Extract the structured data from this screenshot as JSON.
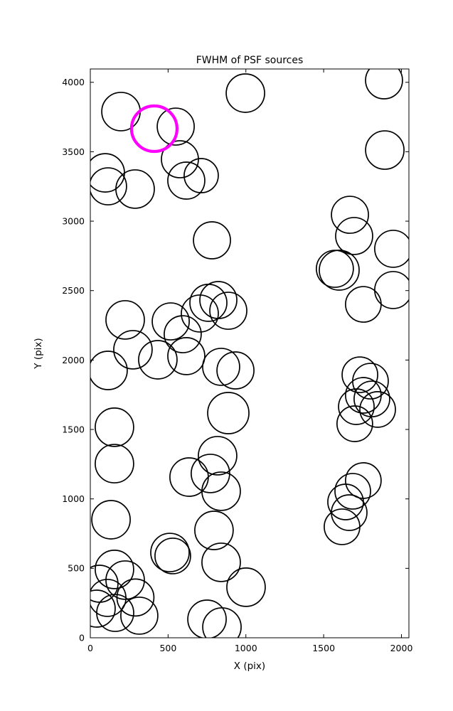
{
  "chart_data": {
    "type": "scatter",
    "title": "FWHM of PSF sources",
    "xlabel": "X (pix)",
    "ylabel": "Y (pix)",
    "xlim": [
      0,
      2048
    ],
    "ylim": [
      0,
      4096
    ],
    "xticks": [
      0,
      500,
      1000,
      1500,
      2000
    ],
    "yticks": [
      0,
      500,
      1000,
      1500,
      2000,
      2500,
      3000,
      3500,
      4000
    ],
    "grid": false,
    "legend": false,
    "marker_style": "open-circle",
    "radius_units": "screen_px",
    "circle_color": "#000000",
    "highlight_color": "#ff00ff",
    "highlight": {
      "x": 411,
      "y": 3666,
      "r": 32
    },
    "circles": [
      {
        "x": 197,
        "y": 3789,
        "r": 27
      },
      {
        "x": 549,
        "y": 3681,
        "r": 26
      },
      {
        "x": 997,
        "y": 3922,
        "r": 27
      },
      {
        "x": 1888,
        "y": 4014,
        "r": 26
      },
      {
        "x": 1893,
        "y": 3512,
        "r": 27
      },
      {
        "x": 96,
        "y": 3348,
        "r": 27
      },
      {
        "x": 288,
        "y": 3231,
        "r": 27
      },
      {
        "x": 114,
        "y": 3251,
        "r": 26
      },
      {
        "x": 576,
        "y": 3446,
        "r": 26
      },
      {
        "x": 617,
        "y": 3292,
        "r": 26
      },
      {
        "x": 713,
        "y": 3328,
        "r": 24
      },
      {
        "x": 782,
        "y": 2862,
        "r": 26
      },
      {
        "x": 1669,
        "y": 3046,
        "r": 26
      },
      {
        "x": 1696,
        "y": 2893,
        "r": 26
      },
      {
        "x": 1947,
        "y": 2801,
        "r": 26
      },
      {
        "x": 1572,
        "y": 2657,
        "r": 26
      },
      {
        "x": 1600,
        "y": 2647,
        "r": 28
      },
      {
        "x": 1755,
        "y": 2401,
        "r": 25
      },
      {
        "x": 1947,
        "y": 2504,
        "r": 26
      },
      {
        "x": 224,
        "y": 2289,
        "r": 27
      },
      {
        "x": 274,
        "y": 2074,
        "r": 27
      },
      {
        "x": 114,
        "y": 1925,
        "r": 27
      },
      {
        "x": 434,
        "y": 2002,
        "r": 27
      },
      {
        "x": 517,
        "y": 2278,
        "r": 26
      },
      {
        "x": 594,
        "y": 2186,
        "r": 26
      },
      {
        "x": 704,
        "y": 2335,
        "r": 26
      },
      {
        "x": 759,
        "y": 2412,
        "r": 26
      },
      {
        "x": 823,
        "y": 2432,
        "r": 26
      },
      {
        "x": 887,
        "y": 2355,
        "r": 26
      },
      {
        "x": 617,
        "y": 2028,
        "r": 26
      },
      {
        "x": 841,
        "y": 1951,
        "r": 26
      },
      {
        "x": 933,
        "y": 1925,
        "r": 26
      },
      {
        "x": 887,
        "y": 1618,
        "r": 29
      },
      {
        "x": 155,
        "y": 1516,
        "r": 27
      },
      {
        "x": 155,
        "y": 1254,
        "r": 27
      },
      {
        "x": 1733,
        "y": 1894,
        "r": 25
      },
      {
        "x": 1801,
        "y": 1848,
        "r": 25
      },
      {
        "x": 1755,
        "y": 1746,
        "r": 25
      },
      {
        "x": 1810,
        "y": 1720,
        "r": 25
      },
      {
        "x": 1710,
        "y": 1664,
        "r": 25
      },
      {
        "x": 1847,
        "y": 1644,
        "r": 25
      },
      {
        "x": 1700,
        "y": 1541,
        "r": 25
      },
      {
        "x": 818,
        "y": 1311,
        "r": 27
      },
      {
        "x": 772,
        "y": 1183,
        "r": 27
      },
      {
        "x": 635,
        "y": 1157,
        "r": 27
      },
      {
        "x": 841,
        "y": 1055,
        "r": 27
      },
      {
        "x": 1755,
        "y": 1132,
        "r": 25
      },
      {
        "x": 1687,
        "y": 1055,
        "r": 25
      },
      {
        "x": 1641,
        "y": 978,
        "r": 25
      },
      {
        "x": 1664,
        "y": 901,
        "r": 25
      },
      {
        "x": 1618,
        "y": 799,
        "r": 25
      },
      {
        "x": 133,
        "y": 850,
        "r": 27
      },
      {
        "x": 795,
        "y": 773,
        "r": 27
      },
      {
        "x": 512,
        "y": 614,
        "r": 27
      },
      {
        "x": 530,
        "y": 589,
        "r": 25
      },
      {
        "x": 841,
        "y": 543,
        "r": 27
      },
      {
        "x": 1001,
        "y": 364,
        "r": 27
      },
      {
        "x": 155,
        "y": 492,
        "r": 27
      },
      {
        "x": 224,
        "y": 415,
        "r": 27
      },
      {
        "x": 59,
        "y": 389,
        "r": 26
      },
      {
        "x": 110,
        "y": 287,
        "r": 26
      },
      {
        "x": 41,
        "y": 210,
        "r": 26
      },
      {
        "x": 160,
        "y": 179,
        "r": 26
      },
      {
        "x": 315,
        "y": 159,
        "r": 26
      },
      {
        "x": 290,
        "y": 290,
        "r": 26
      },
      {
        "x": 750,
        "y": 133,
        "r": 27
      },
      {
        "x": 846,
        "y": 77,
        "r": 27
      }
    ]
  }
}
